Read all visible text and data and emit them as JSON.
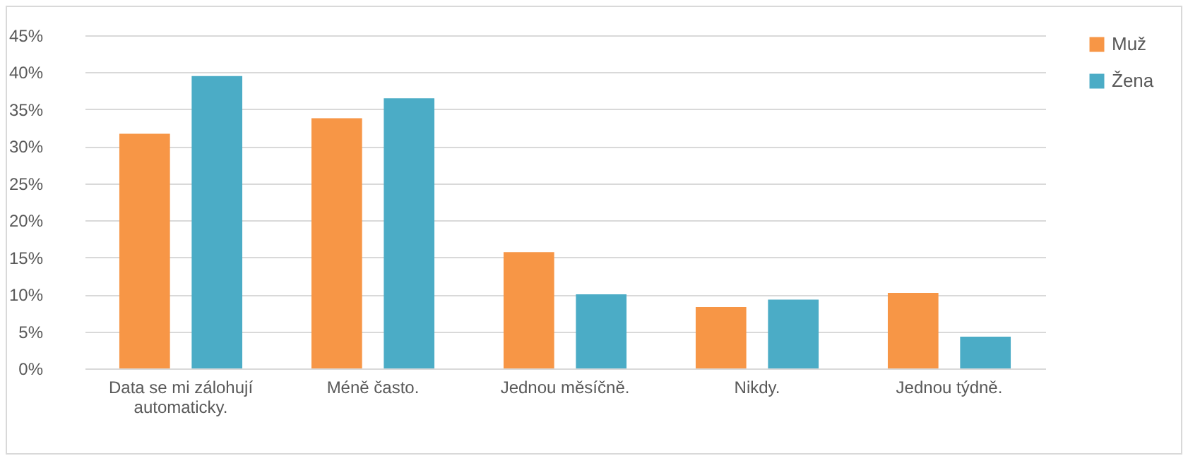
{
  "chart_data": {
    "type": "bar",
    "categories": [
      "Data se mi zálohují automaticky.",
      "Méně často.",
      "Jednou měsíčně.",
      "Nikdy.",
      "Jednou týdně."
    ],
    "series": [
      {
        "name": "Muž",
        "color": "#f79646",
        "values": [
          31.7,
          33.8,
          15.7,
          8.3,
          10.2
        ]
      },
      {
        "name": "Žena",
        "color": "#4bacc6",
        "values": [
          39.5,
          36.5,
          10.0,
          9.3,
          4.3
        ]
      }
    ],
    "ylim": [
      0,
      45
    ],
    "yticks": [
      {
        "value": 0,
        "label": "0%"
      },
      {
        "value": 5,
        "label": "5%"
      },
      {
        "value": 10,
        "label": "10%"
      },
      {
        "value": 15,
        "label": "15%"
      },
      {
        "value": 20,
        "label": "20%"
      },
      {
        "value": 25,
        "label": "25%"
      },
      {
        "value": 30,
        "label": "30%"
      },
      {
        "value": 35,
        "label": "35%"
      },
      {
        "value": 40,
        "label": "40%"
      },
      {
        "value": 45,
        "label": "45%"
      }
    ],
    "grid": "y",
    "legend": "right"
  }
}
